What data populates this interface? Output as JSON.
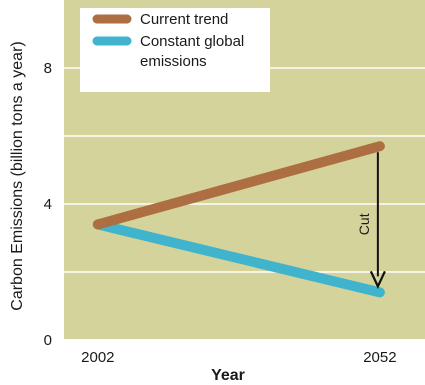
{
  "chart_data": {
    "type": "line",
    "xlabel": "Year",
    "ylabel": "Carbon Emissions (billion tons a year)",
    "xlim": [
      1996,
      2060
    ],
    "ylim": [
      0,
      10
    ],
    "x_ticks": [
      "2002",
      "2052"
    ],
    "y_ticks": [
      "0",
      "4",
      "8"
    ],
    "grid": "horizontal",
    "legend_position": "top-left",
    "series": [
      {
        "name": "Current trend",
        "name_lines": [
          "Current trend"
        ],
        "color": "#ad6e42",
        "points": [
          {
            "x": 2002,
            "y": 3.4
          },
          {
            "x": 2052,
            "y": 5.7
          }
        ]
      },
      {
        "name": "Constant global emissions",
        "name_lines": [
          "Constant global",
          "emissions"
        ],
        "color": "#3fb4cc",
        "points": [
          {
            "x": 2002,
            "y": 3.4
          },
          {
            "x": 2052,
            "y": 1.4
          }
        ]
      }
    ],
    "annotation": {
      "label": "Cut",
      "x": 2052,
      "from_y": 5.7,
      "to_y": 1.4
    },
    "colors": {
      "plot_bg": "#d5d39c",
      "grid": "#ffffff",
      "arrow": "#111111"
    }
  }
}
